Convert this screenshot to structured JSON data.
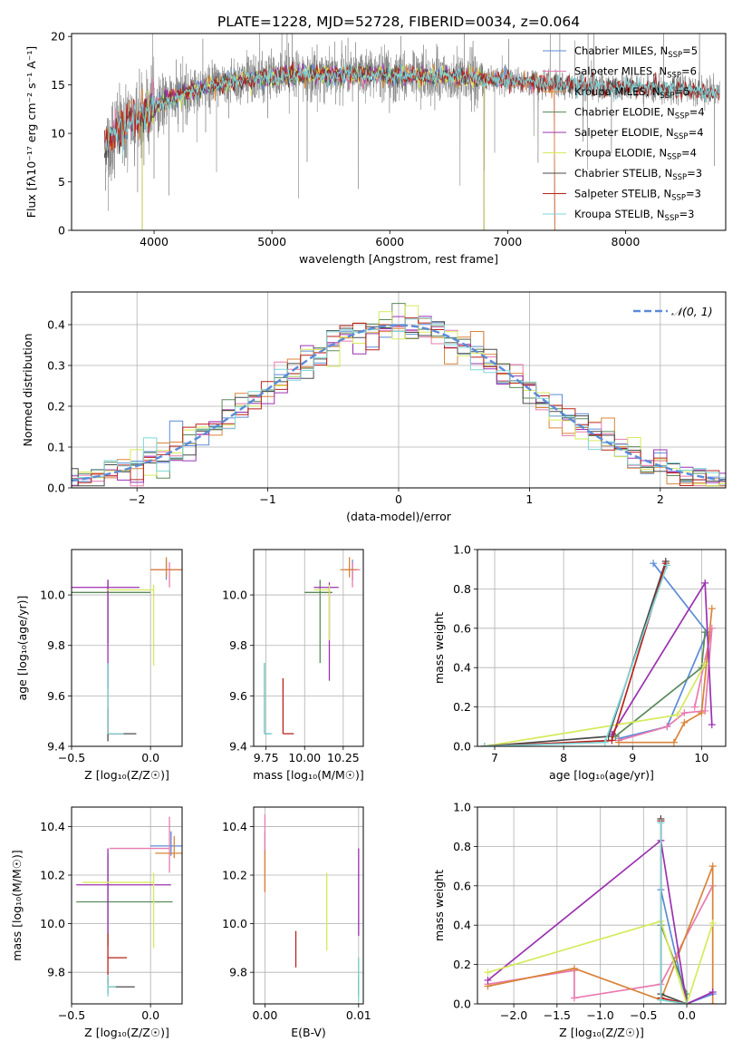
{
  "title": "PLATE=1228, MJD=52728, FIBERID=0034, z=0.064",
  "colors": {
    "chabrier_miles": "#5b8bd8",
    "salpeter_miles": "#e87ab0",
    "kroupa_miles": "#d9843a",
    "chabrier_elodie": "#5a8a5a",
    "salpeter_elodie": "#9b30b0",
    "kroupa_elodie": "#d6ea5a",
    "chabrier_stelib": "#4a4a4a",
    "salpeter_stelib": "#b8221c",
    "kroupa_stelib": "#7fd6d8",
    "data": "#808080",
    "gaussian": "#5b8bd8",
    "grid": "#b0b0b0"
  },
  "chart_data": [
    {
      "id": "spectrum",
      "type": "line",
      "xlabel": "wavelength [Angstrom, rest frame]",
      "ylabel": "Flux [fλ10⁻¹⁷ erg cm⁻² s⁻¹ A⁻¹]",
      "xlim": [
        3300,
        8850
      ],
      "ylim": [
        0,
        20.3
      ],
      "xticks": [
        4000,
        5000,
        6000,
        7000,
        8000
      ],
      "yticks": [
        0,
        5,
        10,
        15,
        20
      ],
      "grid": false,
      "legend_position": "right",
      "legend": [
        {
          "key": "chabrier_miles",
          "label": "Chabrier MILES, N",
          "sub": "SSP",
          "tail": "=5"
        },
        {
          "key": "salpeter_miles",
          "label": "Salpeter MILES, N",
          "sub": "SSP",
          "tail": "=6"
        },
        {
          "key": "kroupa_miles",
          "label": "Kroupa MILES, N",
          "sub": "SSP",
          "tail": "=5"
        },
        {
          "key": "chabrier_elodie",
          "label": "Chabrier ELODIE, N",
          "sub": "SSP",
          "tail": "=4"
        },
        {
          "key": "salpeter_elodie",
          "label": "Salpeter ELODIE, N",
          "sub": "SSP",
          "tail": "=4"
        },
        {
          "key": "kroupa_elodie",
          "label": "Kroupa ELODIE, N",
          "sub": "SSP",
          "tail": "=4"
        },
        {
          "key": "chabrier_stelib",
          "label": "Chabrier STELIB, N",
          "sub": "SSP",
          "tail": "=3"
        },
        {
          "key": "salpeter_stelib",
          "label": "Salpeter STELIB, N",
          "sub": "SSP",
          "tail": "=3"
        },
        {
          "key": "kroupa_stelib",
          "label": "Kroupa STELIB, N",
          "sub": "SSP",
          "tail": "=3"
        }
      ],
      "continuum": [
        [
          3580,
          8.5
        ],
        [
          3700,
          10.5
        ],
        [
          3850,
          11.5
        ],
        [
          4000,
          12.8
        ],
        [
          4200,
          13.8
        ],
        [
          4500,
          15.0
        ],
        [
          4800,
          15.6
        ],
        [
          5100,
          15.9
        ],
        [
          5500,
          16.1
        ],
        [
          6000,
          16.0
        ],
        [
          6500,
          15.8
        ],
        [
          7000,
          15.5
        ],
        [
          7500,
          15.0
        ],
        [
          8000,
          14.7
        ],
        [
          8500,
          14.5
        ],
        [
          8800,
          14.2
        ]
      ],
      "flux_range": [
        3580,
        8800
      ]
    },
    {
      "id": "residuals",
      "type": "histogram",
      "xlabel": "(data-model)/error",
      "ylabel": "Normed distribution",
      "xlim": [
        -2.5,
        2.5
      ],
      "ylim": [
        0,
        0.48
      ],
      "xticks": [
        -2,
        -1,
        0,
        1,
        2
      ],
      "yticks": [
        0.0,
        0.1,
        0.2,
        0.3,
        0.4
      ],
      "grid": true,
      "legend": "𝒩(0, 1)",
      "legend_position": "top-right",
      "bin_width": 0.1
    },
    {
      "id": "age_vs_Z",
      "type": "errorbar",
      "xlabel": "Z [log₁₀(Z/Z☉)]",
      "ylabel": "age  [log₁₀(age/yr)]",
      "xlim": [
        -0.5,
        0.2
      ],
      "ylim": [
        9.4,
        10.18
      ],
      "xticks": [
        -0.5,
        0.0
      ],
      "yticks": [
        9.4,
        9.6,
        9.8,
        10.0
      ],
      "grid": true,
      "points": [
        {
          "key": "chabrier_miles",
          "x": 0.1,
          "xerr": [
            0.1,
            0.14
          ],
          "y": 10.1,
          "yerr": [
            0.04,
            0.04
          ]
        },
        {
          "key": "salpeter_miles",
          "x": 0.12,
          "xerr": [
            0.12,
            0.09
          ],
          "y": 10.1,
          "yerr": [
            0.07,
            0.03
          ]
        },
        {
          "key": "kroupa_miles",
          "x": 0.1,
          "xerr": [
            0.1,
            0.12
          ],
          "y": 10.1,
          "yerr": [
            0.03,
            0.05
          ]
        },
        {
          "key": "chabrier_elodie",
          "x": -0.27,
          "xerr": [
            0.27,
            0.27
          ],
          "y": 10.01,
          "yerr": [
            0.2,
            0.05
          ]
        },
        {
          "key": "salpeter_elodie",
          "x": -0.27,
          "xerr": [
            0.23,
            0.2
          ],
          "y": 10.03,
          "yerr": [
            0.4,
            0.03
          ]
        },
        {
          "key": "kroupa_elodie",
          "x": 0.02,
          "xerr": [
            0.3,
            0.0
          ],
          "y": 10.02,
          "yerr": [
            0.3,
            0.02
          ]
        },
        {
          "key": "chabrier_stelib",
          "x": -0.27,
          "xerr": [
            0.0,
            0.18
          ],
          "y": 9.45,
          "yerr": [
            0.03,
            0.28
          ]
        },
        {
          "key": "salpeter_stelib",
          "x": -0.27,
          "xerr": [
            0.0,
            0.1
          ],
          "y": 9.45,
          "yerr": [
            0.0,
            0.1
          ]
        },
        {
          "key": "kroupa_stelib",
          "x": -0.27,
          "xerr": [
            0.0,
            0.1
          ],
          "y": 9.45,
          "yerr": [
            0.0,
            0.28
          ]
        }
      ]
    },
    {
      "id": "age_vs_mass",
      "type": "errorbar",
      "xlabel": "mass [log₁₀(M/M☉)]",
      "ylabel": "",
      "xlim": [
        9.67,
        10.38
      ],
      "ylim": [
        9.4,
        10.18
      ],
      "xticks": [
        9.75,
        10.0,
        10.25
      ],
      "xticklabels": [
        "9.75",
        "10.00",
        "10.25"
      ],
      "yticks": [
        9.4,
        9.6,
        9.8,
        10.0
      ],
      "grid": true,
      "points": [
        {
          "key": "chabrier_miles",
          "x": 10.31,
          "xerr": [
            0.03,
            0.03
          ],
          "y": 10.1,
          "yerr": [
            0.04,
            0.04
          ]
        },
        {
          "key": "salpeter_miles",
          "x": 10.31,
          "xerr": [
            0.05,
            0.05
          ],
          "y": 10.1,
          "yerr": [
            0.07,
            0.03
          ]
        },
        {
          "key": "kroupa_miles",
          "x": 10.29,
          "xerr": [
            0.06,
            0.05
          ],
          "y": 10.1,
          "yerr": [
            0.03,
            0.05
          ]
        },
        {
          "key": "chabrier_elodie",
          "x": 10.1,
          "xerr": [
            0.1,
            0.08
          ],
          "y": 10.01,
          "yerr": [
            0.28,
            0.05
          ]
        },
        {
          "key": "salpeter_elodie",
          "x": 10.16,
          "xerr": [
            0.1,
            0.06
          ],
          "y": 10.03,
          "yerr": [
            0.37,
            0.02
          ]
        },
        {
          "key": "kroupa_elodie",
          "x": 10.16,
          "xerr": [
            0.1,
            0.0
          ],
          "y": 10.02,
          "yerr": [
            0.2,
            0.02
          ]
        },
        {
          "key": "chabrier_stelib",
          "x": 9.74,
          "xerr": [
            0.0,
            0.04
          ],
          "y": 9.45,
          "yerr": [
            0.0,
            0.28
          ]
        },
        {
          "key": "salpeter_stelib",
          "x": 9.86,
          "xerr": [
            0.0,
            0.07
          ],
          "y": 9.45,
          "yerr": [
            0.0,
            0.22
          ]
        },
        {
          "key": "kroupa_stelib",
          "x": 9.74,
          "xerr": [
            0.0,
            0.05
          ],
          "y": 9.45,
          "yerr": [
            0.0,
            0.28
          ]
        }
      ]
    },
    {
      "id": "weight_vs_age",
      "type": "line",
      "xlabel": "age  [log₁₀(age/yr)]",
      "ylabel": "mass weight",
      "xlim": [
        6.75,
        10.35
      ],
      "ylim": [
        0,
        1
      ],
      "xticks": [
        7,
        8,
        9,
        10
      ],
      "yticks": [
        0.0,
        0.2,
        0.4,
        0.6,
        0.8,
        1.0
      ],
      "grid": true,
      "series": [
        {
          "key": "chabrier_miles",
          "x": [
            8.8,
            9.5,
            10.08,
            9.3
          ],
          "y": [
            0.04,
            0.1,
            0.58,
            0.93
          ]
        },
        {
          "key": "salpeter_miles",
          "x": [
            8.8,
            9.5,
            9.75,
            10.05,
            10.15,
            9.9
          ],
          "y": [
            0.03,
            0.1,
            0.17,
            0.18,
            0.6,
            0.2
          ]
        },
        {
          "key": "kroupa_miles",
          "x": [
            8.8,
            9.6,
            9.75,
            10.0,
            10.15
          ],
          "y": [
            0.02,
            0.02,
            0.12,
            0.17,
            0.7
          ]
        },
        {
          "key": "chabrier_elodie",
          "x": [
            8.75,
            10.0,
            10.05
          ],
          "y": [
            0.05,
            0.4,
            0.58
          ]
        },
        {
          "key": "salpeter_elodie",
          "x": [
            8.7,
            10.05,
            10.15
          ],
          "y": [
            0.06,
            0.83,
            0.11
          ]
        },
        {
          "key": "kroupa_elodie",
          "x": [
            6.85,
            9.65,
            10.05
          ],
          "y": [
            0.0,
            0.16,
            0.42
          ]
        },
        {
          "key": "chabrier_stelib",
          "x": [
            6.85,
            8.65,
            9.48
          ],
          "y": [
            0.0,
            0.05,
            0.94
          ]
        },
        {
          "key": "salpeter_stelib",
          "x": [
            6.85,
            8.7,
            9.48
          ],
          "y": [
            0.0,
            0.03,
            0.93
          ]
        },
        {
          "key": "kroupa_stelib",
          "x": [
            6.85,
            8.6,
            9.5
          ],
          "y": [
            0.0,
            0.02,
            0.92
          ]
        }
      ]
    },
    {
      "id": "mass_vs_Z",
      "type": "errorbar",
      "xlabel": "Z [log₁₀(Z/Z☉)]",
      "ylabel": "mass [log₁₀(M/M☉)]",
      "xlim": [
        -0.5,
        0.2
      ],
      "ylim": [
        9.67,
        10.48
      ],
      "xticks": [
        -0.5,
        0.0
      ],
      "yticks": [
        9.8,
        10.0,
        10.2,
        10.4
      ],
      "grid": true,
      "points": [
        {
          "key": "chabrier_miles",
          "x": 0.13,
          "xerr": [
            0.13,
            0.07
          ],
          "y": 10.32,
          "yerr": [
            0.04,
            0.06
          ]
        },
        {
          "key": "salpeter_miles",
          "x": 0.12,
          "xerr": [
            0.38,
            0.0
          ],
          "y": 10.31,
          "yerr": [
            0.1,
            0.13
          ]
        },
        {
          "key": "kroupa_miles",
          "x": 0.15,
          "xerr": [
            0.12,
            0.05
          ],
          "y": 10.29,
          "yerr": [
            0.02,
            0.07
          ]
        },
        {
          "key": "chabrier_elodie",
          "x": -0.27,
          "xerr": [
            0.2,
            0.41
          ],
          "y": 10.09,
          "yerr": [
            0.18,
            0.2
          ]
        },
        {
          "key": "salpeter_elodie",
          "x": -0.27,
          "xerr": [
            0.2,
            0.4
          ],
          "y": 10.16,
          "yerr": [
            0.2,
            0.15
          ]
        },
        {
          "key": "kroupa_elodie",
          "x": 0.02,
          "xerr": [
            0.45,
            0.0
          ],
          "y": 10.17,
          "yerr": [
            0.27,
            0.04
          ]
        },
        {
          "key": "chabrier_stelib",
          "x": -0.27,
          "xerr": [
            0.0,
            0.17
          ],
          "y": 9.74,
          "yerr": [
            0.03,
            0.04
          ]
        },
        {
          "key": "salpeter_stelib",
          "x": -0.27,
          "xerr": [
            0.0,
            0.12
          ],
          "y": 9.86,
          "yerr": [
            0.11,
            0.1
          ]
        },
        {
          "key": "kroupa_stelib",
          "x": -0.27,
          "xerr": [
            0.0,
            0.05
          ],
          "y": 9.74,
          "yerr": [
            0.04,
            0.05
          ]
        }
      ]
    },
    {
      "id": "mass_vs_ebv",
      "type": "errorbar",
      "xlabel": "E(B-V)",
      "ylabel": "",
      "xlim": [
        -0.0012,
        0.0105
      ],
      "ylim": [
        9.67,
        10.48
      ],
      "xticks": [
        0.0,
        0.01
      ],
      "xticklabels": [
        "0.00",
        "0.01"
      ],
      "yticks": [
        9.8,
        10.0,
        10.2,
        10.4
      ],
      "grid": true,
      "points": [
        {
          "key": "chabrier_miles",
          "x": 0.0,
          "xerr": [
            0,
            0
          ],
          "y": 10.32,
          "yerr": [
            0.04,
            0.06
          ]
        },
        {
          "key": "salpeter_miles",
          "x": 0.0,
          "xerr": [
            0,
            0
          ],
          "y": 10.31,
          "yerr": [
            0.18,
            0.14
          ]
        },
        {
          "key": "kroupa_miles",
          "x": 0.0,
          "xerr": [
            0,
            0
          ],
          "y": 10.22,
          "yerr": [
            0.09,
            0.08
          ]
        },
        {
          "key": "chabrier_elodie",
          "x": 0.01,
          "xerr": [
            0,
            0
          ],
          "y": 9.8,
          "yerr": [
            0.1,
            0.06
          ]
        },
        {
          "key": "salpeter_elodie",
          "x": 0.01,
          "xerr": [
            0,
            0
          ],
          "y": 10.13,
          "yerr": [
            0.18,
            0.18
          ]
        },
        {
          "key": "kroupa_elodie",
          "x": 0.0066,
          "xerr": [
            0,
            0
          ],
          "y": 10.04,
          "yerr": [
            0.15,
            0.17
          ]
        },
        {
          "key": "chabrier_stelib",
          "x": 0.01,
          "xerr": [
            0,
            0
          ],
          "y": 9.74,
          "yerr": [
            0.03,
            0.04
          ]
        },
        {
          "key": "salpeter_stelib",
          "x": 0.0033,
          "xerr": [
            0,
            0
          ],
          "y": 9.89,
          "yerr": [
            0.07,
            0.08
          ]
        },
        {
          "key": "kroupa_stelib",
          "x": 0.01,
          "xerr": [
            0,
            0
          ],
          "y": 9.76,
          "yerr": [
            0.08,
            0.1
          ]
        }
      ]
    },
    {
      "id": "weight_vs_Z",
      "type": "line",
      "xlabel": "Z [log₁₀(Z/Z☉)]",
      "ylabel": "mass weight",
      "xlim": [
        -2.42,
        0.45
      ],
      "ylim": [
        0,
        1
      ],
      "xticks": [
        -2.0,
        -1.5,
        -1.0,
        -0.5,
        0.0
      ],
      "xticklabels": [
        "−2.0",
        "−1.5",
        "−1.0",
        "−0.5",
        "0.0"
      ],
      "yticks": [
        0.0,
        0.2,
        0.4,
        0.6,
        0.8,
        1.0
      ],
      "grid": true,
      "series": [
        {
          "key": "chabrier_miles",
          "x": [
            -0.3,
            -0.3,
            0.0,
            0.3
          ],
          "y": [
            0.93,
            0.58,
            0.0,
            0.05
          ]
        },
        {
          "key": "salpeter_miles",
          "x": [
            -2.3,
            -1.3,
            -1.3,
            -0.3,
            0.3
          ],
          "y": [
            0.1,
            0.17,
            0.03,
            0.1,
            0.6
          ]
        },
        {
          "key": "kroupa_miles",
          "x": [
            -2.3,
            -1.3,
            -0.3,
            0.3,
            0.3
          ],
          "y": [
            0.09,
            0.18,
            0.02,
            0.7,
            0.0
          ]
        },
        {
          "key": "chabrier_elodie",
          "x": [
            -0.3,
            0.0,
            0.0
          ],
          "y": [
            0.4,
            0.05,
            0.0
          ]
        },
        {
          "key": "salpeter_elodie",
          "x": [
            -2.3,
            -0.3,
            0.0,
            0.3
          ],
          "y": [
            0.12,
            0.83,
            0.0,
            0.06
          ]
        },
        {
          "key": "kroupa_elodie",
          "x": [
            -2.3,
            -0.3,
            0.0,
            0.3
          ],
          "y": [
            0.16,
            0.42,
            0.0,
            0.41
          ]
        },
        {
          "key": "chabrier_stelib",
          "x": [
            -0.3,
            -0.3,
            0.0
          ],
          "y": [
            0.94,
            0.05,
            0.0
          ]
        },
        {
          "key": "salpeter_stelib",
          "x": [
            -0.3,
            -0.3,
            0.0
          ],
          "y": [
            0.93,
            0.03,
            0.0
          ]
        },
        {
          "key": "kroupa_stelib",
          "x": [
            -0.3,
            -0.3,
            0.0
          ],
          "y": [
            0.92,
            0.02,
            0.0
          ]
        }
      ]
    }
  ]
}
